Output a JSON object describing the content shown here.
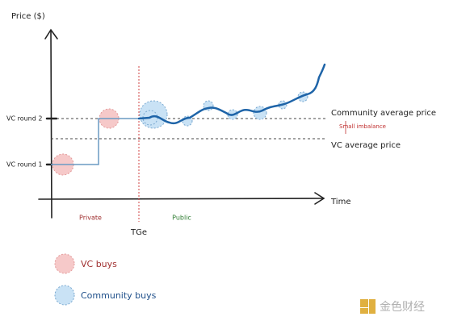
{
  "axes": {
    "y_label": "Price ($)",
    "x_label": "Time",
    "y_levels": [
      "VC round 2",
      "VC round 1"
    ]
  },
  "annotations": {
    "community_avg": "Community average price",
    "imbalance": "Small imbalance",
    "vc_avg": "VC average price"
  },
  "phases": {
    "private": "Private",
    "public": "Public",
    "tge": "TGe"
  },
  "legend": [
    "VC buys",
    "Community buys"
  ],
  "watermark": "金色财经"
}
